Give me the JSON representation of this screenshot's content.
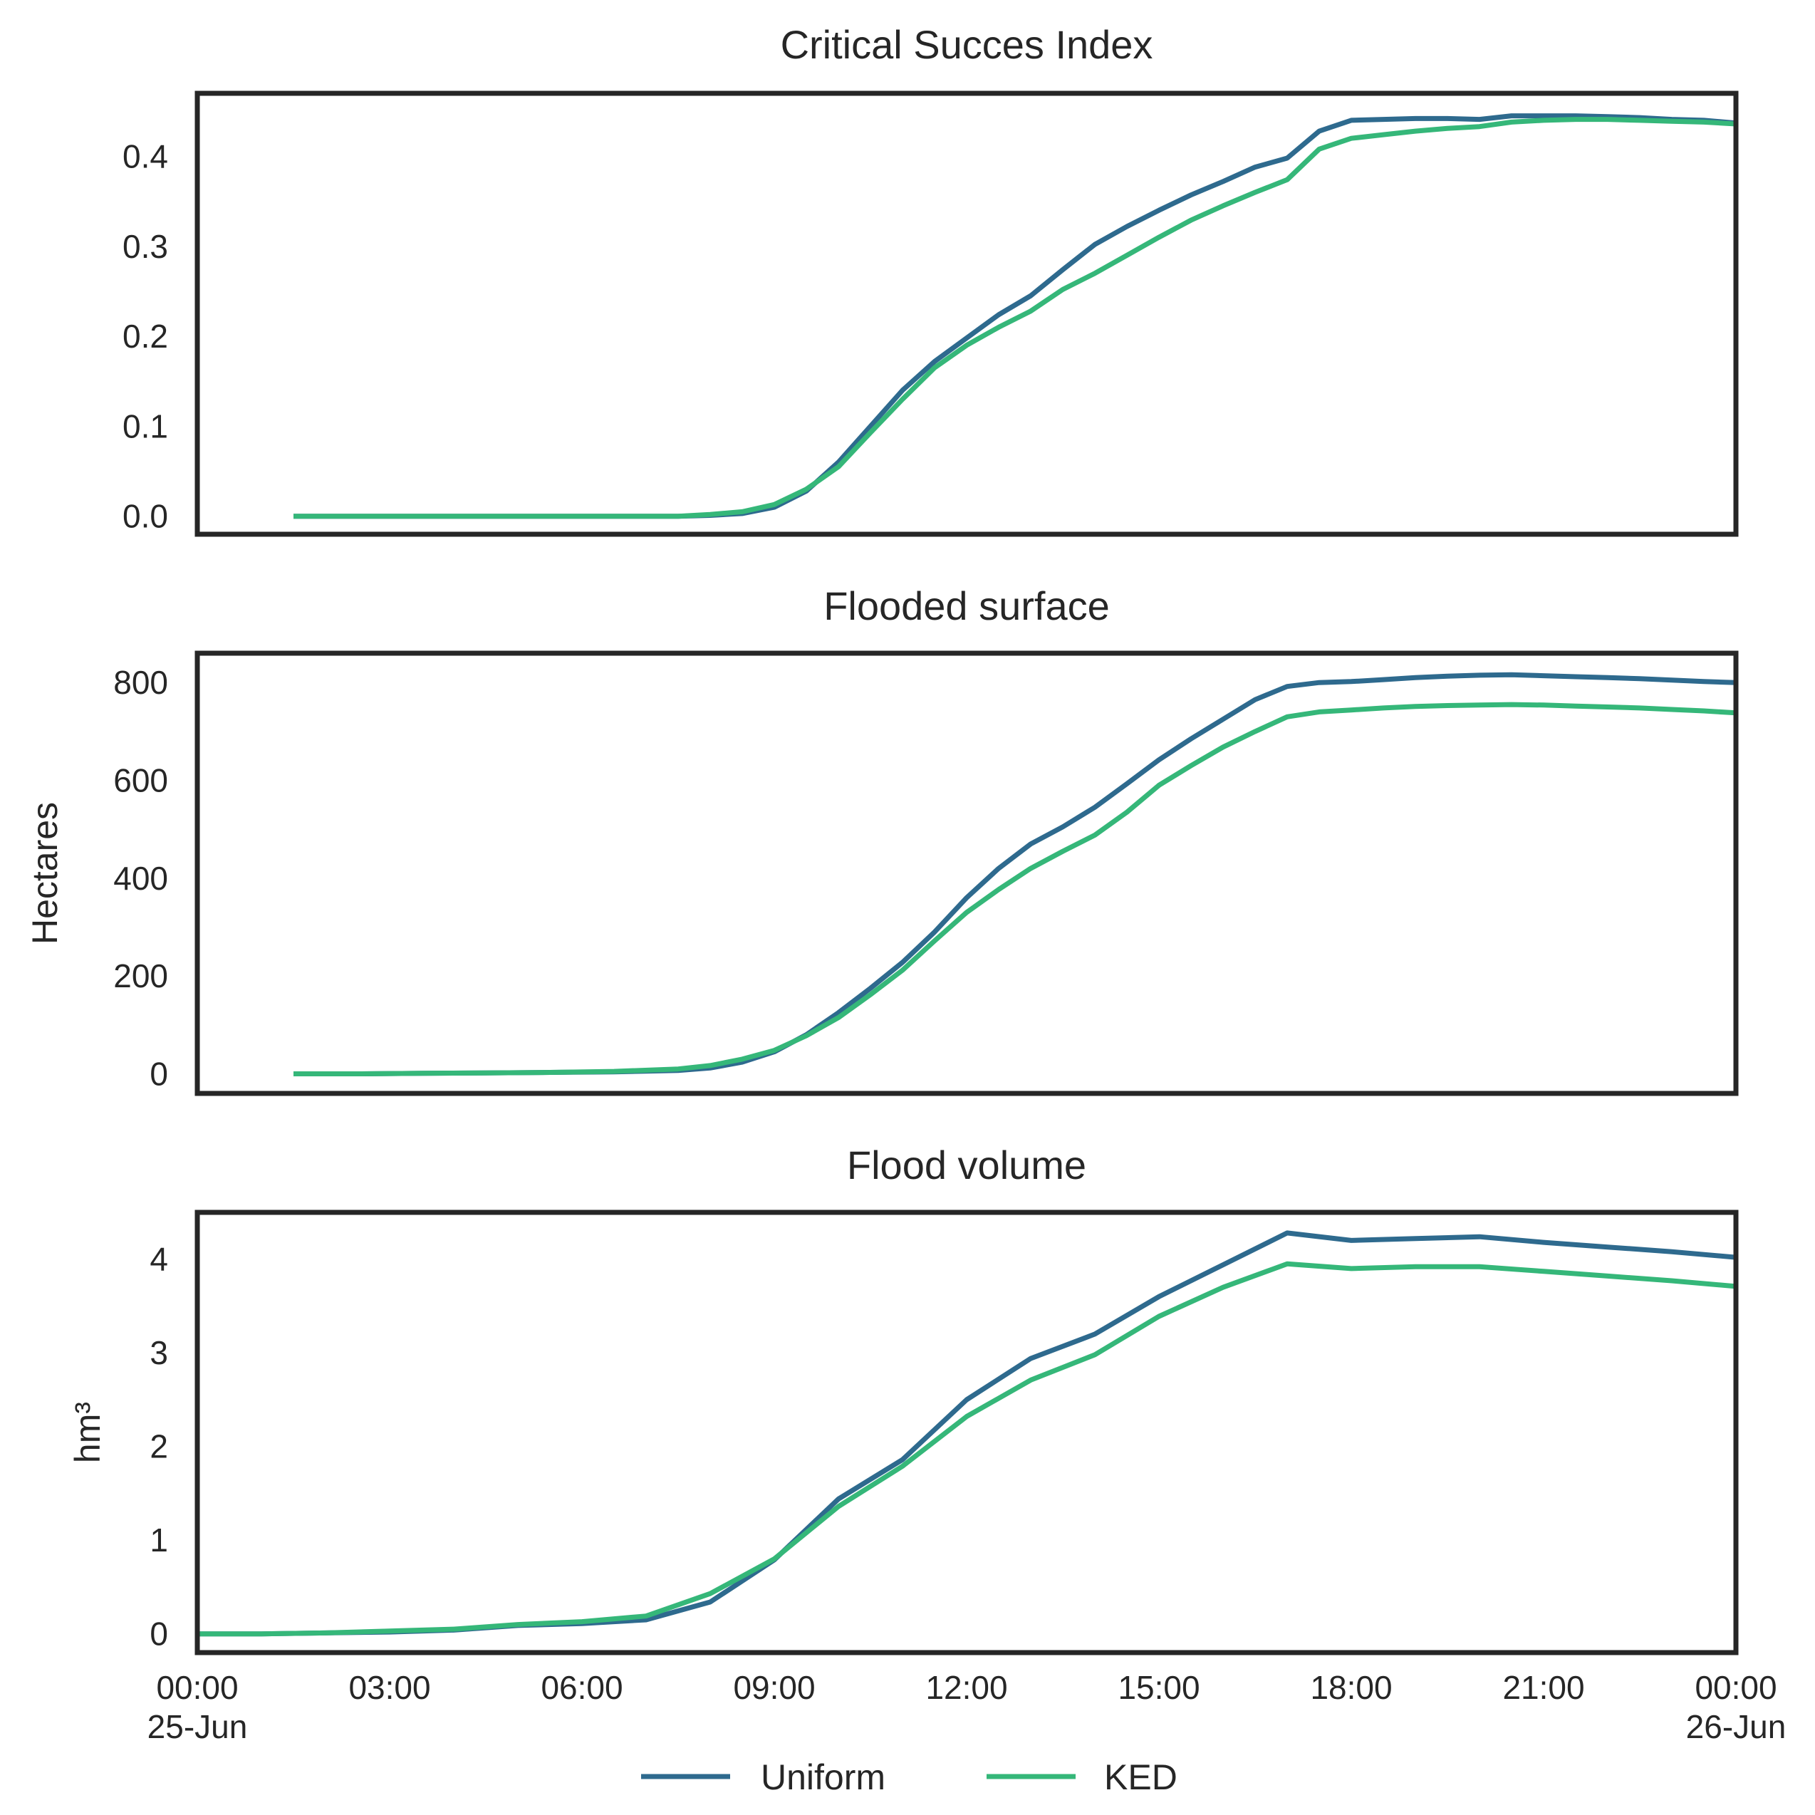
{
  "chart_data": [
    {
      "type": "line",
      "title": "Critical Succes Index",
      "ylabel": "",
      "ylim": [
        -0.02,
        0.47
      ],
      "yticks": [
        0.0,
        0.1,
        0.2,
        0.3,
        0.4
      ],
      "ytick_labels": [
        "0.0",
        "0.1",
        "0.2",
        "0.3",
        "0.4"
      ],
      "series": [
        {
          "name": "Uniform",
          "x": [
            1.5,
            2.5,
            3.5,
            4.5,
            5.5,
            6.5,
            7.5,
            8,
            8.5,
            9,
            9.5,
            10,
            10.5,
            11,
            11.5,
            12,
            12.5,
            13,
            13.5,
            14,
            14.5,
            15,
            15.5,
            16,
            16.5,
            17,
            17.5,
            18,
            18.5,
            19,
            19.5,
            20,
            20.5,
            21,
            21.5,
            22,
            22.5,
            23,
            23.5,
            24
          ],
          "y": [
            0,
            0,
            0,
            0,
            0,
            0,
            0,
            0.001,
            0.003,
            0.01,
            0.028,
            0.06,
            0.1,
            0.14,
            0.172,
            0.198,
            0.224,
            0.245,
            0.274,
            0.302,
            0.322,
            0.34,
            0.357,
            0.372,
            0.388,
            0.398,
            0.428,
            0.44,
            0.441,
            0.442,
            0.442,
            0.441,
            0.445,
            0.445,
            0.445,
            0.444,
            0.443,
            0.441,
            0.44,
            0.437
          ]
        },
        {
          "name": "KED",
          "x": [
            1.5,
            2.5,
            3.5,
            4.5,
            5.5,
            6.5,
            7.5,
            8,
            8.5,
            9,
            9.5,
            10,
            10.5,
            11,
            11.5,
            12,
            12.5,
            13,
            13.5,
            14,
            14.5,
            15,
            15.5,
            16,
            16.5,
            17,
            17.5,
            18,
            18.5,
            19,
            19.5,
            20,
            20.5,
            21,
            21.5,
            22,
            22.5,
            23,
            23.5,
            24
          ],
          "y": [
            0,
            0,
            0,
            0,
            0,
            0,
            0,
            0.002,
            0.005,
            0.013,
            0.03,
            0.055,
            0.093,
            0.13,
            0.165,
            0.19,
            0.21,
            0.228,
            0.252,
            0.27,
            0.29,
            0.31,
            0.329,
            0.345,
            0.36,
            0.374,
            0.408,
            0.42,
            0.424,
            0.428,
            0.431,
            0.433,
            0.438,
            0.44,
            0.441,
            0.441,
            0.44,
            0.439,
            0.438,
            0.436
          ]
        }
      ]
    },
    {
      "type": "line",
      "title": "Flooded surface",
      "ylabel": "Hectares",
      "ylim": [
        -40,
        860
      ],
      "yticks": [
        0,
        200,
        400,
        600,
        800
      ],
      "ytick_labels": [
        "0",
        "200",
        "400",
        "600",
        "800"
      ],
      "series": [
        {
          "name": "Uniform",
          "x": [
            1.5,
            2.5,
            3.5,
            4.5,
            5.5,
            6.5,
            7.5,
            8,
            8.5,
            9,
            9.5,
            10,
            10.5,
            11,
            11.5,
            12,
            12.5,
            13,
            13.5,
            14,
            14.5,
            15,
            15.5,
            16,
            16.5,
            17,
            17.5,
            18,
            18.5,
            19,
            19.5,
            20,
            20.5,
            21,
            21.5,
            22,
            22.5,
            23,
            23.5,
            24
          ],
          "y": [
            0,
            0,
            1,
            2,
            3,
            4,
            7,
            12,
            24,
            45,
            80,
            125,
            175,
            228,
            290,
            360,
            420,
            470,
            505,
            545,
            593,
            642,
            685,
            725,
            765,
            792,
            800,
            802,
            806,
            810,
            813,
            815,
            816,
            814,
            812,
            810,
            808,
            805,
            802,
            800
          ]
        },
        {
          "name": "KED",
          "x": [
            1.5,
            2.5,
            3.5,
            4.5,
            5.5,
            6.5,
            7.5,
            8,
            8.5,
            9,
            9.5,
            10,
            10.5,
            11,
            11.5,
            12,
            12.5,
            13,
            13.5,
            14,
            14.5,
            15,
            15.5,
            16,
            16.5,
            17,
            17.5,
            18,
            18.5,
            19,
            19.5,
            20,
            20.5,
            21,
            21.5,
            22,
            22.5,
            23,
            23.5,
            24
          ],
          "y": [
            0,
            0,
            1,
            2,
            3,
            5,
            10,
            17,
            30,
            48,
            78,
            115,
            162,
            212,
            272,
            330,
            377,
            420,
            455,
            488,
            535,
            590,
            630,
            668,
            700,
            730,
            740,
            744,
            748,
            751,
            753,
            754,
            755,
            754,
            752,
            750,
            748,
            745,
            742,
            738
          ]
        }
      ]
    },
    {
      "type": "line",
      "title": "Flood volume",
      "ylabel": "hm³",
      "ylim": [
        -0.2,
        4.5
      ],
      "yticks": [
        0,
        1,
        2,
        3,
        4
      ],
      "ytick_labels": [
        "0",
        "1",
        "2",
        "3",
        "4"
      ],
      "series": [
        {
          "name": "Uniform",
          "x": [
            0,
            1,
            2,
            3,
            4,
            5,
            6,
            7,
            8,
            9,
            10,
            11,
            12,
            13,
            14,
            15,
            16,
            17,
            18,
            19,
            20,
            21,
            22,
            23,
            24
          ],
          "y": [
            0,
            0,
            0.01,
            0.02,
            0.04,
            0.09,
            0.11,
            0.15,
            0.34,
            0.79,
            1.44,
            1.86,
            2.5,
            2.94,
            3.2,
            3.6,
            3.94,
            4.28,
            4.2,
            4.22,
            4.24,
            4.18,
            4.13,
            4.08,
            4.02
          ]
        },
        {
          "name": "KED",
          "x": [
            0,
            1,
            2,
            3,
            4,
            5,
            6,
            7,
            8,
            9,
            10,
            11,
            12,
            13,
            14,
            15,
            16,
            17,
            18,
            19,
            20,
            21,
            22,
            23,
            24
          ],
          "y": [
            0,
            0,
            0.01,
            0.03,
            0.05,
            0.1,
            0.13,
            0.19,
            0.43,
            0.8,
            1.36,
            1.79,
            2.32,
            2.71,
            2.98,
            3.39,
            3.7,
            3.95,
            3.9,
            3.92,
            3.92,
            3.87,
            3.82,
            3.77,
            3.71
          ]
        }
      ]
    }
  ],
  "xaxis": {
    "xlim": [
      0,
      24
    ],
    "ticks": [
      {
        "value": 0,
        "line1": "00:00",
        "line2": "25-Jun"
      },
      {
        "value": 3,
        "line1": "03:00",
        "line2": ""
      },
      {
        "value": 6,
        "line1": "06:00",
        "line2": ""
      },
      {
        "value": 9,
        "line1": "09:00",
        "line2": ""
      },
      {
        "value": 12,
        "line1": "12:00",
        "line2": ""
      },
      {
        "value": 15,
        "line1": "15:00",
        "line2": ""
      },
      {
        "value": 18,
        "line1": "18:00",
        "line2": ""
      },
      {
        "value": 21,
        "line1": "21:00",
        "line2": ""
      },
      {
        "value": 24,
        "line1": "00:00",
        "line2": "26-Jun"
      }
    ]
  },
  "legend": {
    "placement": "bottom-center",
    "entries": [
      {
        "name": "Uniform",
        "color": "#2e6a8e"
      },
      {
        "name": "KED",
        "color": "#35b779"
      }
    ]
  }
}
